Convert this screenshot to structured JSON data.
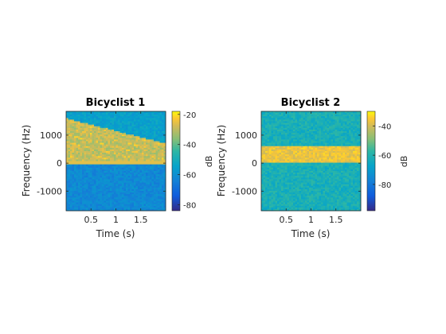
{
  "chart_data": [
    {
      "type": "heatmap",
      "title": "Bicyclist 1",
      "xlabel": "Time (s)",
      "ylabel": "Frequency (Hz)",
      "xlim": [
        0,
        2.0
      ],
      "ylim": [
        -1700,
        1850
      ],
      "xticks": [
        0.5,
        1,
        1.5
      ],
      "xtick_labels": [
        "0.5",
        "1",
        "1.5"
      ],
      "yticks": [
        -1000,
        0,
        1000
      ],
      "ytick_labels": [
        "-1000",
        "0",
        "1000"
      ],
      "colorbar": {
        "label": "dB",
        "range": [
          -84,
          -18
        ],
        "ticks": [
          -80,
          -60,
          -40,
          -20
        ],
        "tick_labels": [
          "-80",
          "-60",
          "-40",
          "-20"
        ]
      },
      "colors": {
        "low": "#3d2bd1",
        "mid": "#20b3a8",
        "high": "#f9e021"
      },
      "signal": {
        "description_note": "strong band starting 0-1600 Hz narrowing to 0-700 Hz, zero-frequency line",
        "band_start_hz": [
          0,
          1600
        ],
        "band_end_hz": [
          0,
          700
        ],
        "peak_db": -30,
        "background_db": -55,
        "below_zero_db": -62
      }
    },
    {
      "type": "heatmap",
      "title": "Bicyclist 2",
      "xlabel": "Time (s)",
      "ylabel": "Frequency (Hz)",
      "xlim": [
        0,
        2.0
      ],
      "ylim": [
        -1700,
        1850
      ],
      "xticks": [
        0.5,
        1,
        1.5
      ],
      "xtick_labels": [
        "0.5",
        "1",
        "1.5"
      ],
      "yticks": [
        -1000,
        0,
        1000
      ],
      "ytick_labels": [
        "-1000",
        "0",
        "1000"
      ],
      "colorbar": {
        "label": "dB",
        "range": [
          -98,
          -30
        ],
        "ticks": [
          -80,
          -60,
          -40
        ],
        "tick_labels": [
          "-80",
          "-60",
          "-40"
        ]
      },
      "colors": {
        "low": "#3d2bd1",
        "mid": "#20b3a8",
        "high": "#f9e021"
      },
      "signal": {
        "band_hz": [
          0,
          600
        ],
        "peak_db": -37,
        "background_db": -62
      }
    }
  ]
}
